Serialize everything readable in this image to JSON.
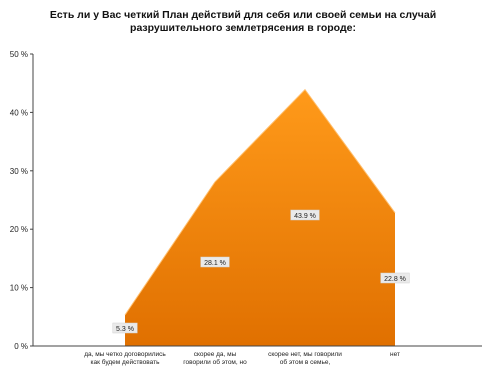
{
  "chart_data": {
    "type": "area",
    "title_lines": [
      "Есть ли у Вас четкий План действий для себя или своей семьи на случай",
      "разрушительного землетрясения в городе:"
    ],
    "categories": [
      [
        "да, мы четко договорились",
        "как будем действовать"
      ],
      [
        "скорее да, мы",
        "говорили об этом, но"
      ],
      [
        "скорее нет, мы говорили",
        "об этом в семье,"
      ],
      [
        "нет"
      ]
    ],
    "values": [
      5.3,
      28.1,
      43.9,
      22.8
    ],
    "data_labels": [
      "5.3 %",
      "28.1 %",
      "43.9 %",
      "22.8 %"
    ],
    "y_ticks": [
      "0 %",
      "10 %",
      "20 %",
      "30 %",
      "40 %",
      "50 %"
    ],
    "ylim": [
      0,
      50
    ],
    "grid": false,
    "colors": {
      "fill_top": "#ff9a1a",
      "fill_bottom": "#e07000",
      "edge": "#ffc070",
      "axis": "#444444",
      "label_bg": "#eaeaea"
    }
  }
}
